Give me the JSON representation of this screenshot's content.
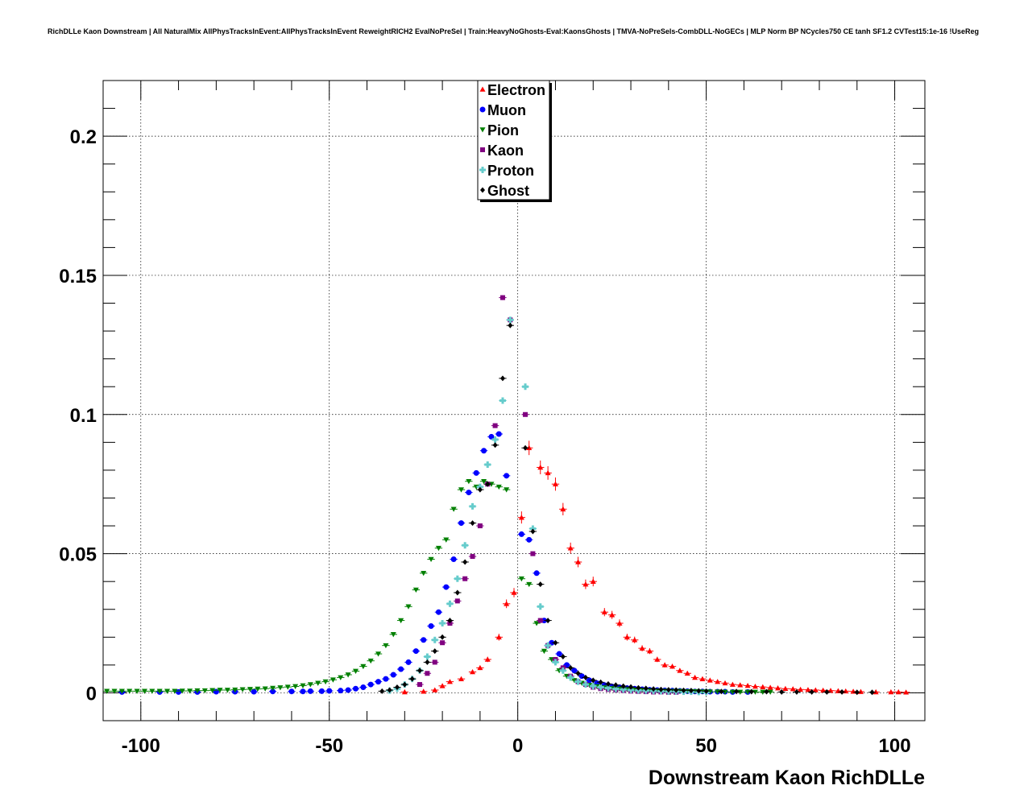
{
  "chart_data": {
    "type": "scatter",
    "title": "RichDLLe Kaon Downstream | All NaturalMix AllPhysTracksInEvent:AllPhysTracksInEvent ReweightRICH2 EvalNoPreSel | Train:HeavyNoGhosts-Eval:KaonsGhosts | TMVA-NoPreSels-CombDLL-NoGECs | MLP Norm BP NCycles750 CE tanh SF1.2 CVTest15:1e-16 !UseReg",
    "xlabel": "Downstream Kaon RichDLLe",
    "ylabel": "",
    "xlim": [
      -110,
      108
    ],
    "ylim": [
      -0.01,
      0.22
    ],
    "x_ticks": [
      -100,
      -50,
      0,
      50,
      100
    ],
    "x_tick_labels": [
      "-100",
      "-50",
      "0",
      "50",
      "100"
    ],
    "y_ticks": [
      0,
      0.05,
      0.1,
      0.15,
      0.2
    ],
    "y_tick_labels": [
      "0",
      "0.05",
      "0.1",
      "0.15",
      "0.2"
    ],
    "grid": true,
    "legend_position": "top-center",
    "series": [
      {
        "name": "Electron",
        "color": "#ff0000",
        "marker": "triangle-up",
        "x": [
          -30,
          -25,
          -22,
          -20,
          -18,
          -15,
          -12,
          -10,
          -8,
          -5,
          -3,
          -1,
          1,
          3,
          6,
          8,
          10,
          12,
          14,
          16,
          18,
          20,
          23,
          25,
          27,
          29,
          31,
          33,
          35,
          37,
          39,
          41,
          43,
          45,
          47,
          49,
          51,
          53,
          55,
          57,
          59,
          61,
          63,
          65,
          67,
          69,
          71,
          73,
          75,
          77,
          79,
          81,
          83,
          85,
          87,
          89,
          91,
          95,
          99,
          101,
          103
        ],
        "y": [
          0.0003,
          0.0005,
          0.001,
          0.0025,
          0.004,
          0.005,
          0.0075,
          0.009,
          0.012,
          0.02,
          0.032,
          0.036,
          0.063,
          0.088,
          0.081,
          0.079,
          0.075,
          0.066,
          0.052,
          0.047,
          0.039,
          0.04,
          0.029,
          0.028,
          0.025,
          0.02,
          0.019,
          0.016,
          0.015,
          0.012,
          0.01,
          0.0095,
          0.008,
          0.007,
          0.0055,
          0.005,
          0.0045,
          0.004,
          0.0035,
          0.003,
          0.0028,
          0.0026,
          0.0023,
          0.0021,
          0.0019,
          0.0017,
          0.0015,
          0.0014,
          0.0012,
          0.0011,
          0.001,
          0.0009,
          0.0008,
          0.0007,
          0.0006,
          0.0005,
          0.0004,
          0.0003,
          0.0003,
          0.0003,
          0.0002
        ]
      },
      {
        "name": "Muon",
        "color": "#0000ff",
        "marker": "circle",
        "x": [
          -105,
          -95,
          -90,
          -85,
          -80,
          -75,
          -70,
          -65,
          -60,
          -57,
          -55,
          -52,
          -50,
          -47,
          -45,
          -43,
          -41,
          -39,
          -37,
          -35,
          -33,
          -31,
          -29,
          -27,
          -25,
          -23,
          -21,
          -19,
          -17,
          -15,
          -13,
          -11,
          -9,
          -7,
          -5,
          -3,
          1,
          3,
          5,
          7,
          9,
          11,
          13,
          15,
          17,
          19,
          21,
          23,
          25,
          27,
          29,
          31,
          33,
          35,
          37,
          39,
          41,
          43,
          45,
          47,
          49,
          51,
          53,
          55,
          57,
          61
        ],
        "y": [
          0.0003,
          0.0003,
          0.0003,
          0.0003,
          0.0004,
          0.0004,
          0.0004,
          0.0005,
          0.0005,
          0.0005,
          0.0006,
          0.0006,
          0.0007,
          0.0008,
          0.001,
          0.0015,
          0.002,
          0.003,
          0.004,
          0.005,
          0.0065,
          0.0085,
          0.011,
          0.015,
          0.019,
          0.024,
          0.029,
          0.038,
          0.048,
          0.061,
          0.072,
          0.079,
          0.087,
          0.092,
          0.093,
          0.078,
          0.057,
          0.055,
          0.043,
          0.026,
          0.018,
          0.014,
          0.01,
          0.008,
          0.006,
          0.0045,
          0.0035,
          0.0028,
          0.0023,
          0.002,
          0.0017,
          0.0015,
          0.0013,
          0.0011,
          0.001,
          0.0009,
          0.0008,
          0.0007,
          0.0006,
          0.0005,
          0.0005,
          0.0004,
          0.0004,
          0.0004,
          0.0003,
          0.0003
        ]
      },
      {
        "name": "Pion",
        "color": "#008000",
        "marker": "triangle-down",
        "x": [
          -109,
          -107,
          -105,
          -103,
          -101,
          -99,
          -97,
          -95,
          -93,
          -91,
          -89,
          -87,
          -85,
          -83,
          -81,
          -79,
          -77,
          -75,
          -73,
          -71,
          -69,
          -67,
          -65,
          -63,
          -61,
          -59,
          -57,
          -55,
          -53,
          -51,
          -49,
          -47,
          -45,
          -43,
          -41,
          -39,
          -37,
          -35,
          -33,
          -31,
          -29,
          -27,
          -25,
          -23,
          -21,
          -19,
          -17,
          -15,
          -13,
          -11,
          -9,
          -7,
          -5,
          -3,
          1,
          3,
          5,
          7,
          9,
          11,
          13,
          15,
          17,
          19,
          21,
          23,
          25,
          27,
          29,
          31,
          33,
          35,
          37,
          39,
          41,
          43,
          45,
          47,
          49,
          51,
          53,
          55,
          57,
          59,
          61,
          63,
          65,
          67
        ],
        "y": [
          0.0006,
          0.0006,
          0.0006,
          0.0006,
          0.0006,
          0.0006,
          0.0006,
          0.0006,
          0.0006,
          0.0006,
          0.0007,
          0.0007,
          0.0008,
          0.0008,
          0.0009,
          0.001,
          0.001,
          0.0011,
          0.0012,
          0.0013,
          0.0014,
          0.0015,
          0.0017,
          0.0019,
          0.0021,
          0.0023,
          0.0026,
          0.003,
          0.0035,
          0.004,
          0.0047,
          0.0055,
          0.0065,
          0.0078,
          0.0095,
          0.0115,
          0.014,
          0.017,
          0.021,
          0.026,
          0.031,
          0.037,
          0.043,
          0.048,
          0.052,
          0.055,
          0.066,
          0.073,
          0.076,
          0.074,
          0.076,
          0.075,
          0.074,
          0.073,
          0.041,
          0.039,
          0.025,
          0.015,
          0.012,
          0.008,
          0.006,
          0.0045,
          0.0035,
          0.0028,
          0.0023,
          0.0019,
          0.0016,
          0.0014,
          0.0012,
          0.0011,
          0.001,
          0.0009,
          0.0008,
          0.0007,
          0.0006,
          0.0006,
          0.0005,
          0.0005,
          0.0004,
          0.0004,
          0.0004,
          0.0003,
          0.0003,
          0.0003,
          0.0003,
          0.0003,
          0.0003,
          0.0003
        ]
      },
      {
        "name": "Kaon",
        "color": "#800080",
        "marker": "square",
        "x": [
          -26,
          -24,
          -22,
          -20,
          -18,
          -16,
          -14,
          -12,
          -10,
          -8,
          -6,
          -4,
          -2,
          2,
          4,
          6,
          8,
          10,
          12,
          14,
          16,
          18,
          20,
          22,
          24,
          26,
          28,
          30,
          32,
          34,
          36,
          38,
          40,
          42
        ],
        "y": [
          0.003,
          0.007,
          0.011,
          0.018,
          0.025,
          0.033,
          0.041,
          0.049,
          0.06,
          0.075,
          0.096,
          0.142,
          0.134,
          0.1,
          0.05,
          0.026,
          0.017,
          0.012,
          0.009,
          0.006,
          0.004,
          0.003,
          0.002,
          0.0015,
          0.0012,
          0.001,
          0.0008,
          0.0006,
          0.0005,
          0.0004,
          0.0003,
          0.0003,
          0.0002,
          0.0002
        ]
      },
      {
        "name": "Proton",
        "color": "#66cccc",
        "marker": "cross",
        "x": [
          -34,
          -32,
          -30,
          -28,
          -26,
          -24,
          -22,
          -20,
          -18,
          -16,
          -14,
          -12,
          -10,
          -8,
          -6,
          -4,
          -2,
          2,
          4,
          6,
          8,
          10,
          12,
          14,
          16,
          18,
          20,
          22,
          24,
          26,
          28,
          30,
          32,
          34,
          36,
          38,
          40,
          42,
          44,
          46,
          48,
          50
        ],
        "y": [
          0.0008,
          0.0015,
          0.003,
          0.005,
          0.008,
          0.013,
          0.019,
          0.025,
          0.032,
          0.041,
          0.053,
          0.067,
          0.074,
          0.082,
          0.091,
          0.105,
          0.134,
          0.11,
          0.059,
          0.031,
          0.017,
          0.011,
          0.008,
          0.0055,
          0.004,
          0.003,
          0.0024,
          0.002,
          0.0017,
          0.0014,
          0.0012,
          0.001,
          0.0009,
          0.0008,
          0.0007,
          0.0006,
          0.0005,
          0.0005,
          0.0004,
          0.0004,
          0.0003,
          0.0003
        ]
      },
      {
        "name": "Ghost",
        "color": "#000000",
        "marker": "diamond",
        "x": [
          -36,
          -34,
          -32,
          -30,
          -28,
          -26,
          -24,
          -22,
          -20,
          -18,
          -16,
          -14,
          -12,
          -10,
          -8,
          -6,
          -4,
          -2,
          2,
          4,
          6,
          8,
          10,
          12,
          14,
          16,
          18,
          20,
          22,
          24,
          26,
          28,
          30,
          32,
          34,
          36,
          38,
          40,
          42,
          44,
          46,
          48,
          50,
          54,
          58,
          62,
          66,
          70,
          74,
          78,
          82,
          86,
          90,
          94
        ],
        "y": [
          0.0006,
          0.001,
          0.002,
          0.003,
          0.005,
          0.008,
          0.011,
          0.015,
          0.02,
          0.026,
          0.036,
          0.047,
          0.061,
          0.073,
          0.075,
          0.089,
          0.113,
          0.132,
          0.088,
          0.058,
          0.039,
          0.026,
          0.018,
          0.013,
          0.009,
          0.007,
          0.0055,
          0.0045,
          0.0038,
          0.0032,
          0.0028,
          0.0024,
          0.0021,
          0.0018,
          0.0016,
          0.0014,
          0.0012,
          0.0011,
          0.001,
          0.0009,
          0.0008,
          0.0007,
          0.0006,
          0.0005,
          0.0005,
          0.0004,
          0.0004,
          0.0003,
          0.0003,
          0.0003,
          0.0003,
          0.0003,
          0.0002,
          0.0002
        ]
      }
    ]
  }
}
